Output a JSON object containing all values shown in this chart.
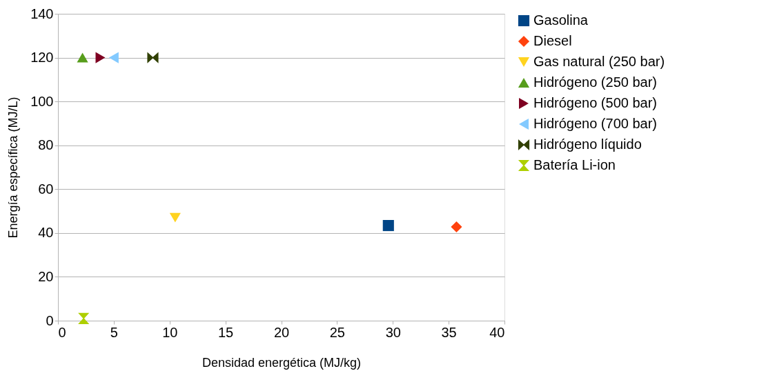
{
  "chart_data": {
    "type": "scatter",
    "xlabel": "Densidad energética (MJ/kg)",
    "ylabel": "Energía específica (MJ/L)",
    "xlim": [
      0,
      40
    ],
    "xticks": [
      0,
      5,
      10,
      15,
      20,
      25,
      30,
      35,
      40
    ],
    "ylim": [
      0,
      140
    ],
    "yticks": [
      0,
      20,
      40,
      60,
      80,
      100,
      120,
      140
    ],
    "grid": "y",
    "legend": "right",
    "series": [
      {
        "name": "Gasolina",
        "color": "#004586",
        "marker": "square",
        "x": [
          29.6
        ],
        "values": [
          43.4
        ]
      },
      {
        "name": "Diesel",
        "color": "#ff420e",
        "marker": "diamond",
        "x": [
          35.7
        ],
        "values": [
          42.8
        ]
      },
      {
        "name": "Gas natural (250 bar)",
        "color": "#ffd320",
        "marker": "triangle-down",
        "x": [
          10.5
        ],
        "values": [
          47
        ]
      },
      {
        "name": "Hidrógeno (250 bar)",
        "color": "#579d1c",
        "marker": "triangle",
        "x": [
          2.2
        ],
        "values": [
          120
        ]
      },
      {
        "name": "Hidrógeno (500 bar)",
        "color": "#7e0021",
        "marker": "triangle-right",
        "x": [
          3.8
        ],
        "values": [
          120
        ]
      },
      {
        "name": "Hidrógeno (700 bar)",
        "color": "#83caff",
        "marker": "triangle-left",
        "x": [
          5
        ],
        "values": [
          120
        ]
      },
      {
        "name": "Hidrógeno líquido",
        "color": "#314004",
        "x": [
          8.5
        ],
        "values": [
          120
        ]
      },
      {
        "name": "Batería Li-ion",
        "color": "#aecf00",
        "x": [
          2.3
        ],
        "values": [
          1
        ]
      }
    ]
  }
}
